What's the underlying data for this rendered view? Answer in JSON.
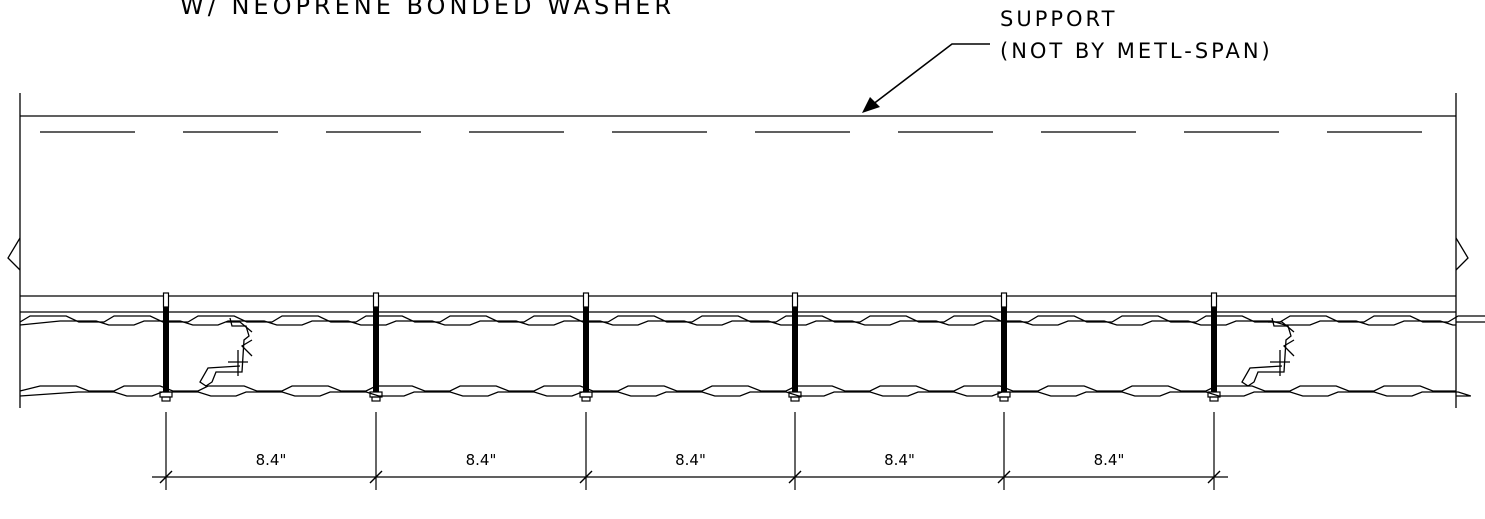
{
  "callouts": {
    "fastener_note": "W/ NEOPRENE BONDED WASHER",
    "support_line1": "SUPPORT",
    "support_line2": "(NOT BY METL-SPAN)"
  },
  "dimensions": [
    "8.4\"",
    "8.4\"",
    "8.4\"",
    "8.4\"",
    "8.4\""
  ],
  "colors": {
    "line": "#000000",
    "background": "#ffffff"
  }
}
